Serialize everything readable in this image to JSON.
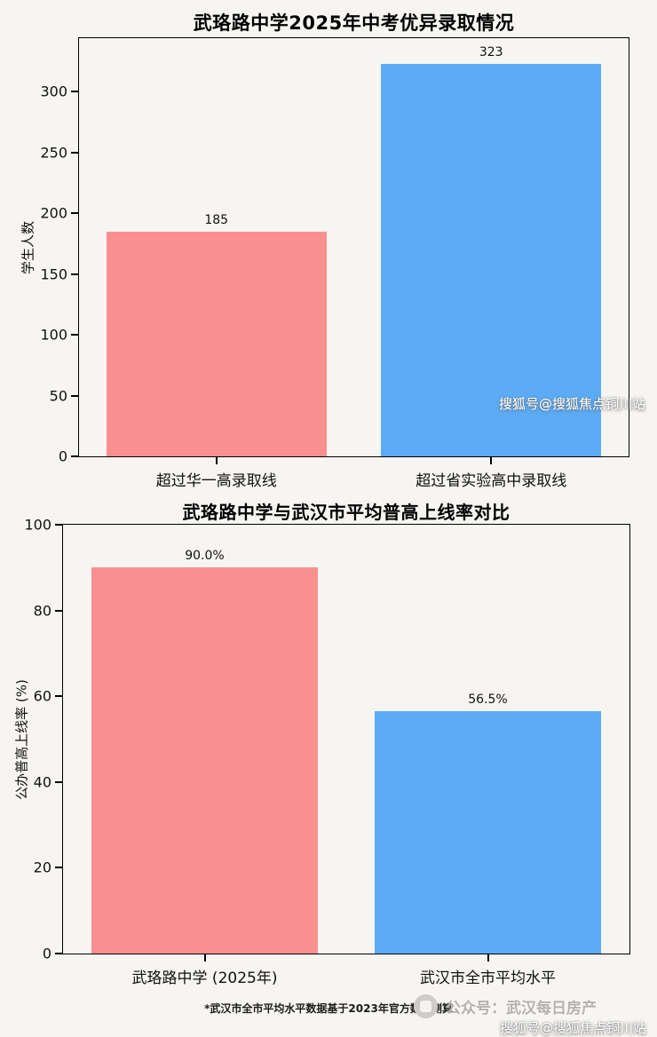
{
  "colors": {
    "bar_pink": "#fa8f8f",
    "bar_blue": "#5babf5",
    "axis": "#000000",
    "page_background": "#f7f5f2"
  },
  "chart_data": [
    {
      "type": "bar",
      "title": "武珞路中学2025年中考优异录取情况",
      "ylabel": "学生人数",
      "categories": [
        "超过华一高录取线",
        "超过省实验高中录取线"
      ],
      "values": [
        185,
        323
      ],
      "value_labels": [
        "185",
        "323"
      ],
      "bar_colors": [
        "#fa8f8f",
        "#5babf5"
      ],
      "ylim": [
        0,
        344
      ],
      "yticks": [
        0,
        50,
        100,
        150,
        200,
        250,
        300
      ],
      "grid": false,
      "legend": "none"
    },
    {
      "type": "bar",
      "title": "武珞路中学与武汉市平均普高上线率对比",
      "ylabel": "公办普高上线率 (%)",
      "categories": [
        "武珞路中学 (2025年)",
        "武汉市全市平均水平"
      ],
      "values": [
        90.0,
        56.5
      ],
      "value_labels": [
        "90.0%",
        "56.5%"
      ],
      "bar_colors": [
        "#fa8f8f",
        "#5babf5"
      ],
      "ylim": [
        0,
        100
      ],
      "yticks": [
        0,
        20,
        40,
        60,
        80,
        100
      ],
      "grid": false,
      "legend": "none"
    }
  ],
  "footnote": "*武汉市全市平均水平数据基于2023年官方数据测算",
  "watermarks": {
    "mid_right": "搜狐号@搜狐焦点铜川站",
    "bottom_publisher": "公众号：武汉每日房产",
    "bottom_right": "搜狐号@搜狐焦点铜川站"
  }
}
